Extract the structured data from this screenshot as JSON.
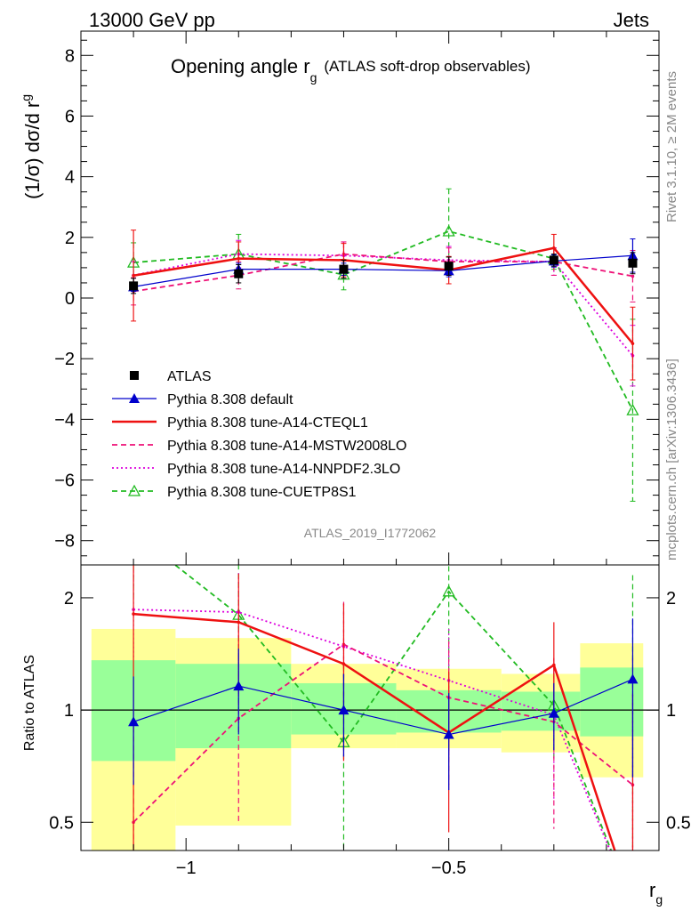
{
  "header": {
    "energy_label": "13000 GeV pp",
    "process_label": "Jets"
  },
  "side_labels": {
    "rivet": "Rivet 3.1.10, ≥ 2M events",
    "mcplots": "mcplots.cern.ch [arXiv:1306.3436]"
  },
  "chart_data": {
    "type": "line",
    "title": "Opening angle r",
    "title_sub": "g",
    "title_suffix": "(ATLAS soft-drop observables)",
    "analysis_label": "ATLAS_2019_I1772062",
    "ylabel": "(1/σ) dσ/d r",
    "ylabel_sub": "g",
    "xlabel": "r",
    "xlabel_sub": "g",
    "x_scale": "log",
    "xlim": [
      -1.2,
      -0.1
    ],
    "ylim": [
      -8.8,
      8.8
    ],
    "x_ticks": [
      -1,
      -0.5
    ],
    "x_tick_labels": [
      "−1",
      "−0.5"
    ],
    "y_ticks": [
      -8,
      -6,
      -4,
      -2,
      0,
      2,
      4,
      6,
      8
    ],
    "y_tick_labels": [
      "−8",
      "−6",
      "−4",
      "−2",
      "0",
      "2",
      "4",
      "6",
      "8"
    ],
    "legend_position": "bottom-left",
    "x": [
      -1.1,
      -0.9,
      -0.7,
      -0.5,
      -0.3,
      -0.15
    ],
    "series": [
      {
        "name": "ATLAS",
        "color": "#000000",
        "style": "marker-square",
        "values": [
          0.4,
          0.8,
          0.95,
          1.05,
          1.25,
          1.15
        ],
        "err": [
          0.25,
          0.3,
          0.3,
          0.3,
          0.2,
          0.35
        ]
      },
      {
        "name": "Pythia 8.308 default",
        "color": "#0000cc",
        "style": "solid-thin-triangle",
        "values": [
          0.37,
          0.95,
          0.95,
          0.9,
          1.22,
          1.4
        ],
        "err": [
          0.15,
          0.2,
          0.2,
          0.2,
          0.2,
          0.55
        ]
      },
      {
        "name": "Pythia 8.308 tune-A14-CTEQL1",
        "color": "#ee1111",
        "style": "solid-thick",
        "values": [
          0.74,
          1.3,
          1.25,
          0.92,
          1.65,
          -1.5
        ],
        "err": [
          1.5,
          0.55,
          0.55,
          0.45,
          0.45,
          1.2
        ]
      },
      {
        "name": "Pythia 8.308 tune-A14-MSTW2008LO",
        "color": "#ee1177",
        "style": "dashed",
        "values": [
          0.22,
          0.75,
          1.45,
          1.2,
          1.2,
          0.72
        ],
        "err": [
          0.45,
          0.45,
          0.4,
          0.45,
          0.45,
          0.85
        ]
      },
      {
        "name": "Pythia 8.308 tune-A14-NNPDF2.3LO",
        "color": "#dd00dd",
        "style": "dotted",
        "values": [
          0.75,
          1.45,
          1.4,
          1.25,
          1.2,
          -1.9
        ],
        "err": [
          0.45,
          0.45,
          0.45,
          0.45,
          0.45,
          1.0
        ]
      },
      {
        "name": "Pythia 8.308 tune-CUETP8S1",
        "color": "#22bb22",
        "style": "dashed-open-triangle",
        "values": [
          1.17,
          1.45,
          0.77,
          2.2,
          1.3,
          -3.7
        ],
        "err": [
          0.65,
          0.65,
          0.5,
          1.4,
          0.35,
          3.0
        ]
      }
    ],
    "ratio": {
      "ylabel": "Ratio to ATLAS",
      "y_scale": "log",
      "ylim": [
        0.42,
        2.45
      ],
      "y_ticks": [
        0.5,
        1,
        2
      ],
      "y_tick_labels": [
        "0.5",
        "1",
        "2"
      ],
      "bins": [
        {
          "x_lo": -1.18,
          "x_hi": -1.02,
          "inner": [
            0.73,
            1.36
          ],
          "outer": [
            0.3,
            1.65
          ]
        },
        {
          "x_lo": -1.02,
          "x_hi": -0.8,
          "inner": [
            0.79,
            1.33
          ],
          "outer": [
            0.49,
            1.56
          ]
        },
        {
          "x_lo": -0.8,
          "x_hi": -0.6,
          "inner": [
            0.86,
            1.18
          ],
          "outer": [
            0.79,
            1.33
          ]
        },
        {
          "x_lo": -0.6,
          "x_hi": -0.4,
          "inner": [
            0.87,
            1.13
          ],
          "outer": [
            0.79,
            1.29
          ]
        },
        {
          "x_lo": -0.4,
          "x_hi": -0.25,
          "inner": [
            0.88,
            1.12
          ],
          "outer": [
            0.77,
            1.25
          ]
        },
        {
          "x_lo": -0.25,
          "x_hi": -0.13,
          "inner": [
            0.85,
            1.3
          ],
          "outer": [
            0.66,
            1.51
          ]
        }
      ],
      "series": [
        {
          "name": "Pythia 8.308 default",
          "values": [
            0.93,
            1.16,
            1.0,
            0.86,
            0.98,
            1.21
          ],
          "err": [
            0.3,
            0.3,
            0.25,
            0.25,
            0.2,
            0.55
          ]
        },
        {
          "name": "Pythia 8.308 tune-A14-CTEQL1",
          "values": [
            1.81,
            1.72,
            1.33,
            0.87,
            1.32,
            0.3
          ],
          "err": [
            1.5,
            0.6,
            0.6,
            0.4,
            0.4,
            0.8
          ]
        },
        {
          "name": "Pythia 8.308 tune-A14-MSTW2008LO",
          "values": [
            0.5,
            0.95,
            1.5,
            1.08,
            0.93,
            0.63
          ],
          "err": [
            0.45,
            0.45,
            0.45,
            0.45,
            0.45,
            0.75
          ]
        },
        {
          "name": "Pythia 8.308 tune-A14-NNPDF2.3LO",
          "values": [
            1.86,
            1.83,
            1.48,
            1.2,
            0.97,
            0.3
          ],
          "err": [
            0.5,
            0.5,
            0.45,
            0.45,
            0.4,
            0.8
          ]
        },
        {
          "name": "Pythia 8.308 tune-CUETP8S1",
          "values": [
            3.0,
            1.8,
            0.82,
            2.08,
            1.03,
            0.3
          ],
          "err": [
            1.0,
            0.8,
            0.5,
            1.3,
            0.3,
            2.0
          ]
        }
      ]
    }
  },
  "colors": {
    "band_outer": "#ffff99",
    "band_inner": "#99ff99",
    "side_text": "#888888"
  }
}
